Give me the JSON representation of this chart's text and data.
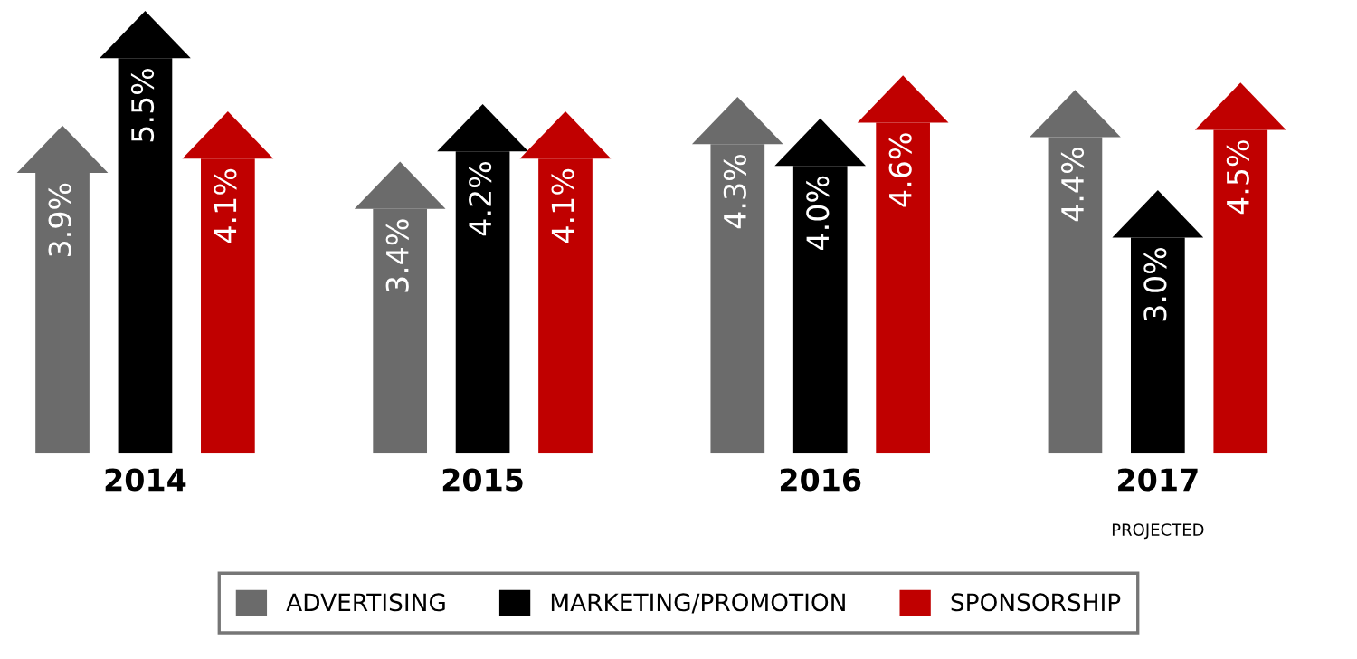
{
  "chart_data": {
    "type": "bar",
    "categories": [
      "2014",
      "2015",
      "2016",
      "2017"
    ],
    "series": [
      {
        "name": "ADVERTISING",
        "color": "#6b6b6b",
        "values": [
          3.9,
          3.4,
          4.3,
          4.4
        ],
        "value_labels": [
          "3.9%",
          "3.4%",
          "4.3%",
          "4.4%"
        ]
      },
      {
        "name": "MARKETING/PROMOTION",
        "color": "#000000",
        "values": [
          5.5,
          4.2,
          4.0,
          3.0
        ],
        "value_labels": [
          "5.5%",
          "4.2%",
          "4.0%",
          "3.0%"
        ]
      },
      {
        "name": "SPONSORSHIP",
        "color": "#c00000",
        "values": [
          4.1,
          4.1,
          4.6,
          4.5
        ],
        "value_labels": [
          "4.1%",
          "4.1%",
          "4.6%",
          "4.5%"
        ]
      }
    ],
    "annotations": [
      "PROJECTED"
    ],
    "legend": "bottom",
    "grid": false
  }
}
